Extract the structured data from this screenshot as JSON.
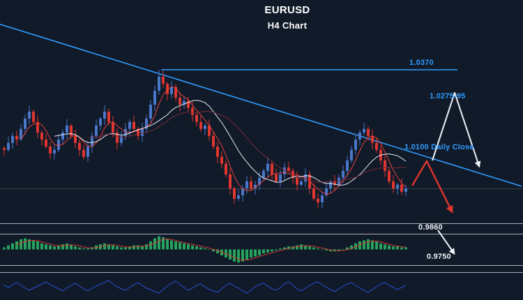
{
  "header": {
    "title": "EURUSD",
    "subtitle": "H4 Chart"
  },
  "labels": {
    "resistance": "1.0370",
    "supply_zone": "1.0275-95",
    "daily_close": "1.0100 Daily Close",
    "support_1": "0.9860",
    "support_2": "0.9750"
  },
  "colors": {
    "background": "#101a28",
    "accent_blue": "#2f9bff",
    "bull_candle": "#4a77c9",
    "bear_candle": "#e0362f",
    "ma_fast": "#e8413c",
    "ma_mid": "#e6ecf5",
    "ma_slow": "#7d2836",
    "histogram_green": "#27a35d",
    "signal_red": "#d23a34",
    "oscillator_blue": "#2b4fd8",
    "white": "#eef2f8",
    "separator": "#c6cedb",
    "grid_faint": "#39424f"
  },
  "chart_data": {
    "type": "candlestick",
    "symbol": "EURUSD",
    "timeframe": "H4",
    "title": "EURUSD",
    "subtitle": "H4 Chart",
    "price_axis_visible": false,
    "time_axis_visible": false,
    "annotations": [
      {
        "text": "1.0370",
        "price": 1.037,
        "style": "horizontal-resistance-line",
        "color": "#2f9bff"
      },
      {
        "text": "1.0275-95",
        "price_range": [
          1.0275,
          1.0295
        ],
        "style": "supply-zone-label",
        "color": "#2f9bff"
      },
      {
        "text": "1.0100 Daily Close",
        "price": 1.01,
        "style": "level-label",
        "color": "#2f9bff"
      },
      {
        "text": "0.9860",
        "price": 0.986,
        "style": "support-label",
        "color": "#ffffff"
      },
      {
        "text": "0.9750",
        "price": 0.975,
        "style": "support-label",
        "color": "#ffffff"
      }
    ],
    "trendline": {
      "direction": "descending",
      "start_price": 1.052,
      "end_price": 0.9986
    },
    "projections": [
      {
        "name": "white-path-up-then-down",
        "prices": [
          1.0071,
          1.0294,
          1.0053
        ]
      },
      {
        "name": "red-path-up-then-down",
        "prices": [
          0.9988,
          1.0069,
          0.9903
        ]
      },
      {
        "name": "white-target-down",
        "prices": [
          0.9841,
          0.9765
        ]
      }
    ],
    "candles": {
      "count": 97,
      "peak_index": 37,
      "peak_high": 1.037,
      "closes": [
        1.0106,
        1.0129,
        1.0152,
        1.014,
        1.0175,
        1.0209,
        1.0232,
        1.0198,
        1.0163,
        1.014,
        1.0117,
        1.0094,
        1.0106,
        1.014,
        1.0163,
        1.0186,
        1.0152,
        1.0129,
        1.0106,
        1.0083,
        1.0117,
        1.0152,
        1.0186,
        1.0209,
        1.0232,
        1.0198,
        1.0163,
        1.0129,
        1.0152,
        1.0175,
        1.0198,
        1.0175,
        1.0152,
        1.0175,
        1.0209,
        1.0255,
        1.0301,
        1.0347,
        1.0324,
        1.029,
        1.0313,
        1.0278,
        1.0255,
        1.0267,
        1.0244,
        1.0221,
        1.0198,
        1.0175,
        1.0186,
        1.0152,
        1.0117,
        1.0083,
        1.006,
        1.0025,
        0.9979,
        0.9945,
        0.9956,
        0.9979,
        1.0002,
        0.9979,
        0.9991,
        1.0014,
        1.0037,
        1.006,
        1.0025,
        1.0002,
        1.0025,
        1.0048,
        1.0037,
        1.0014,
        0.9991,
        1.0002,
        1.0025,
        0.9979,
        0.9945,
        0.9933,
        0.9956,
        0.9979,
        1.0002,
        0.9991,
        1.0014,
        1.0037,
        1.0071,
        1.0106,
        1.014,
        1.0163,
        1.0175,
        1.0152,
        1.0129,
        1.0106,
        1.0071,
        1.0037,
        1.0002,
        0.9979,
        0.9991,
        0.9968,
        0.9979
      ]
    },
    "moving_averages": [
      {
        "period": 5,
        "color": "#e8413c"
      },
      {
        "period": 13,
        "color": "#e6ecf5"
      },
      {
        "period": 21,
        "color": "#7d2836"
      }
    ],
    "indicators": [
      {
        "name": "macd-histogram",
        "panel": "middle",
        "bar_color": "#27a35d",
        "signal_color": "#d23a34",
        "values": [
          2,
          4,
          6,
          8,
          10,
          11,
          10,
          9,
          8,
          6,
          5,
          4,
          3,
          4,
          5,
          6,
          5,
          3,
          2,
          1,
          1,
          2,
          4,
          5,
          6,
          5,
          4,
          3,
          2,
          2,
          3,
          4,
          4,
          3,
          5,
          8,
          11,
          13,
          12,
          10,
          9,
          8,
          7,
          6,
          5,
          4,
          3,
          2,
          1,
          0,
          -2,
          -4,
          -6,
          -8,
          -10,
          -12,
          -13,
          -12,
          -10,
          -8,
          -7,
          -6,
          -4,
          -3,
          -2,
          -1,
          1,
          2,
          3,
          3,
          4,
          5,
          4,
          3,
          2,
          1,
          0,
          -1,
          -2,
          -2,
          -1,
          0,
          2,
          4,
          6,
          8,
          9,
          10,
          9,
          8,
          6,
          5,
          4,
          3,
          3,
          2,
          2
        ]
      },
      {
        "name": "oscillator",
        "panel": "bottom",
        "color": "#2b4fd8",
        "values": [
          0.2,
          -0.1,
          0.3,
          0.6,
          0.2,
          -0.2,
          -0.5,
          -0.2,
          0.1,
          0.4,
          0.7,
          0.3,
          0.0,
          -0.3,
          -0.6,
          -0.2,
          0.2,
          0.5,
          0.1,
          -0.3,
          -0.6,
          -0.2,
          0.1,
          0.4,
          0.6,
          0.9,
          0.4,
          0.0,
          -0.3,
          -0.5,
          -0.1,
          0.3,
          0.6,
          0.2,
          -0.2,
          -0.4,
          -0.7,
          -0.9,
          -0.4,
          0.1,
          0.5,
          0.8,
          0.3,
          -0.1,
          -0.5,
          -0.2,
          0.2,
          0.4,
          0.0,
          -0.4,
          -0.6,
          -0.8,
          -0.3,
          0.2,
          0.5,
          0.1,
          -0.2,
          -0.6,
          -0.9,
          -0.5,
          0.0,
          0.3,
          0.5,
          0.1,
          -0.3,
          -0.5,
          -0.1,
          0.4,
          0.7,
          0.2,
          -0.3,
          -0.6,
          -0.2,
          0.2,
          0.5,
          0.7,
          0.3,
          -0.1,
          -0.4,
          -0.7,
          -0.3,
          0.1,
          0.4,
          0.6,
          0.2,
          -0.2,
          -0.5,
          -0.8,
          -0.4,
          0.0,
          0.4,
          0.6,
          0.2,
          -0.1,
          -0.4,
          -0.1,
          0.2
        ]
      }
    ]
  }
}
